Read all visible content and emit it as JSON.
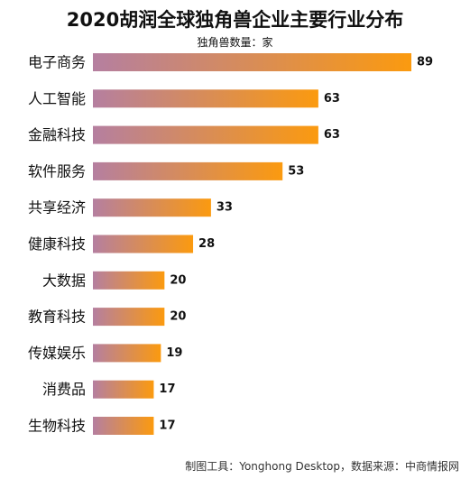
{
  "chart_data": {
    "type": "bar",
    "orientation": "horizontal",
    "title": "2020胡润全球独角兽企业主要行业分布",
    "subtitle": "独角兽数量：家",
    "categories": [
      "电子商务",
      "人工智能",
      "金融科技",
      "软件服务",
      "共享经济",
      "健康科技",
      "大数据",
      "教育科技",
      "传媒娱乐",
      "消费品",
      "生物科技"
    ],
    "values": [
      89,
      63,
      63,
      53,
      33,
      28,
      20,
      20,
      19,
      17,
      17
    ],
    "value_labels": [
      "89",
      "63",
      "63",
      "53",
      "33",
      "28",
      "20",
      "20",
      "19",
      "17",
      "17"
    ],
    "xlim": [
      0,
      89
    ],
    "grid": false,
    "legend": "none",
    "colors": {
      "bar_gradient_start": "#b57fa0",
      "bar_gradient_end": "#fb9a0f"
    }
  },
  "footer": "制图工具：Yonghong Desktop，数据来源：中商情报网"
}
